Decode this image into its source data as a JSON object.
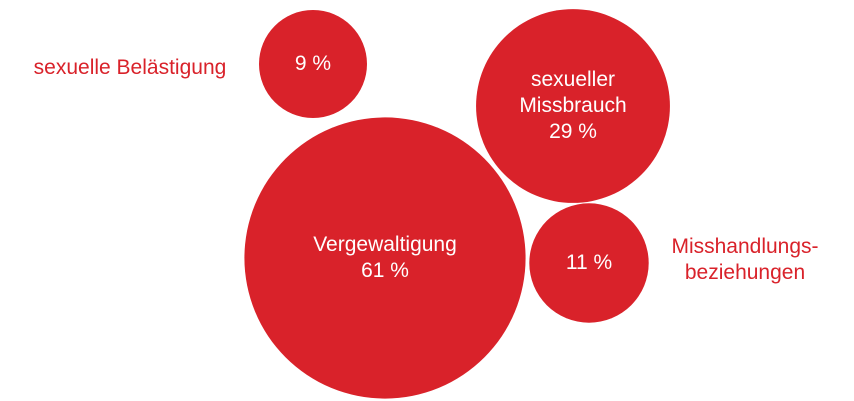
{
  "chart_data": {
    "type": "bubble",
    "categories": [
      "sexuelle Belästigung",
      "sexueller Missbrauch",
      "Vergewaltigung",
      "Misshandlungs-beziehungen"
    ],
    "values": [
      9,
      29,
      61,
      11
    ],
    "value_labels": [
      "9 %",
      "29 %",
      "61 %",
      "11 %"
    ],
    "color": "#d9222a"
  }
}
